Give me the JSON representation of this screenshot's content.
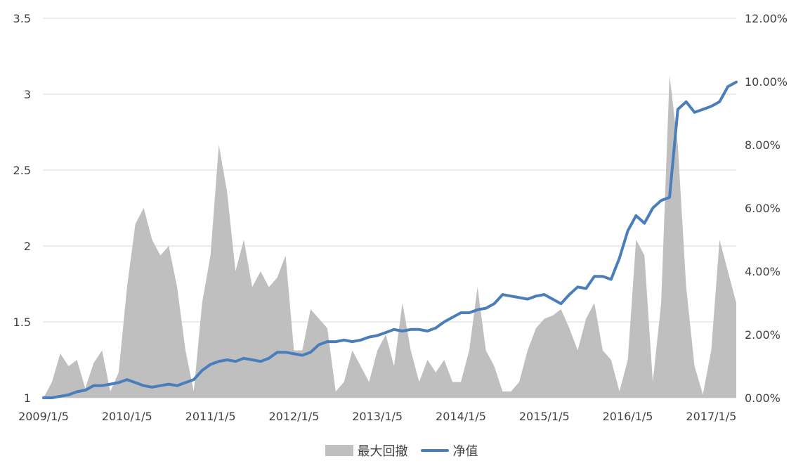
{
  "chart_data": {
    "type": "line",
    "xlabel": "",
    "ylabel": "",
    "x_ticks": [
      "2009/1/5",
      "2010/1/5",
      "2011/1/5",
      "2012/1/5",
      "2013/1/5",
      "2014/1/5",
      "2015/1/5",
      "2016/1/5",
      "2017/1/5"
    ],
    "y_left": {
      "ylim": [
        1,
        3.5
      ],
      "ticks": [
        "1",
        "1.5",
        "2",
        "2.5",
        "3",
        "3.5"
      ]
    },
    "y_right": {
      "ylim": [
        0,
        12
      ],
      "ticks": [
        "0.00%",
        "2.00%",
        "4.00%",
        "6.00%",
        "8.00%",
        "10.00%",
        "12.00%"
      ]
    },
    "grid": true,
    "legend_position": "bottom",
    "colors": {
      "drawdown": "#bfbfbf",
      "nav": "#4a7ebb",
      "grid": "#d9d9d9"
    },
    "series": [
      {
        "name": "最大回撤",
        "type": "area",
        "axis": "right",
        "x": [
          2009.0,
          2009.1,
          2009.2,
          2009.3,
          2009.4,
          2009.5,
          2009.6,
          2009.7,
          2009.8,
          2009.9,
          2010.0,
          2010.1,
          2010.2,
          2010.3,
          2010.4,
          2010.5,
          2010.6,
          2010.7,
          2010.8,
          2010.9,
          2011.0,
          2011.1,
          2011.2,
          2011.3,
          2011.4,
          2011.5,
          2011.6,
          2011.7,
          2011.8,
          2011.9,
          2012.0,
          2012.1,
          2012.2,
          2012.3,
          2012.4,
          2012.5,
          2012.6,
          2012.7,
          2012.8,
          2012.9,
          2013.0,
          2013.1,
          2013.2,
          2013.3,
          2013.4,
          2013.5,
          2013.6,
          2013.7,
          2013.8,
          2013.9,
          2014.0,
          2014.1,
          2014.2,
          2014.3,
          2014.4,
          2014.5,
          2014.6,
          2014.7,
          2014.8,
          2014.9,
          2015.0,
          2015.1,
          2015.2,
          2015.3,
          2015.4,
          2015.5,
          2015.6,
          2015.7,
          2015.8,
          2015.9,
          2016.0,
          2016.1,
          2016.2,
          2016.3,
          2016.4,
          2016.5,
          2016.6,
          2016.7,
          2016.8,
          2016.9,
          2017.0,
          2017.1,
          2017.2,
          2017.3
        ],
        "values": [
          0.0,
          0.5,
          1.4,
          1.0,
          1.2,
          0.3,
          1.1,
          1.5,
          0.2,
          0.8,
          3.5,
          5.5,
          6.0,
          5.0,
          4.5,
          4.8,
          3.5,
          1.5,
          0.2,
          3.0,
          4.5,
          8.0,
          6.5,
          4.0,
          5.0,
          3.5,
          4.0,
          3.5,
          3.8,
          4.5,
          1.5,
          1.5,
          2.8,
          2.5,
          2.2,
          0.2,
          0.5,
          1.5,
          1.0,
          0.5,
          1.5,
          2.0,
          1.0,
          3.0,
          1.5,
          0.5,
          1.2,
          0.8,
          1.2,
          0.5,
          0.5,
          1.5,
          3.5,
          1.5,
          1.0,
          0.2,
          0.2,
          0.5,
          1.5,
          2.2,
          2.5,
          2.6,
          2.8,
          2.2,
          1.5,
          2.5,
          3.0,
          1.5,
          1.2,
          0.2,
          1.2,
          5.0,
          4.5,
          0.5,
          3.0,
          10.2,
          8.0,
          3.5,
          1.0,
          0.1,
          1.5,
          5.0,
          4.0,
          3.0
        ]
      },
      {
        "name": "净值",
        "type": "line",
        "axis": "left",
        "x": [
          2009.0,
          2009.1,
          2009.2,
          2009.3,
          2009.4,
          2009.5,
          2009.6,
          2009.7,
          2009.8,
          2009.9,
          2010.0,
          2010.1,
          2010.2,
          2010.3,
          2010.4,
          2010.5,
          2010.6,
          2010.7,
          2010.8,
          2010.9,
          2011.0,
          2011.1,
          2011.2,
          2011.3,
          2011.4,
          2011.5,
          2011.6,
          2011.7,
          2011.8,
          2011.9,
          2012.0,
          2012.1,
          2012.2,
          2012.3,
          2012.4,
          2012.5,
          2012.6,
          2012.7,
          2012.8,
          2012.9,
          2013.0,
          2013.1,
          2013.2,
          2013.3,
          2013.4,
          2013.5,
          2013.6,
          2013.7,
          2013.8,
          2013.9,
          2014.0,
          2014.1,
          2014.2,
          2014.3,
          2014.4,
          2014.5,
          2014.6,
          2014.7,
          2014.8,
          2014.9,
          2015.0,
          2015.1,
          2015.2,
          2015.3,
          2015.4,
          2015.5,
          2015.6,
          2015.7,
          2015.8,
          2015.9,
          2016.0,
          2016.1,
          2016.2,
          2016.3,
          2016.4,
          2016.5,
          2016.6,
          2016.7,
          2016.8,
          2016.9,
          2017.0,
          2017.1,
          2017.2,
          2017.3
        ],
        "values": [
          1.0,
          1.0,
          1.01,
          1.02,
          1.04,
          1.05,
          1.08,
          1.08,
          1.09,
          1.1,
          1.12,
          1.1,
          1.08,
          1.07,
          1.08,
          1.09,
          1.08,
          1.1,
          1.12,
          1.18,
          1.22,
          1.24,
          1.25,
          1.24,
          1.26,
          1.25,
          1.24,
          1.26,
          1.3,
          1.3,
          1.29,
          1.28,
          1.3,
          1.35,
          1.37,
          1.37,
          1.38,
          1.37,
          1.38,
          1.4,
          1.41,
          1.43,
          1.45,
          1.44,
          1.45,
          1.45,
          1.44,
          1.46,
          1.5,
          1.53,
          1.56,
          1.56,
          1.58,
          1.59,
          1.62,
          1.68,
          1.67,
          1.66,
          1.65,
          1.67,
          1.68,
          1.65,
          1.62,
          1.68,
          1.73,
          1.72,
          1.8,
          1.8,
          1.78,
          1.92,
          2.1,
          2.2,
          2.15,
          2.25,
          2.3,
          2.32,
          2.9,
          2.95,
          2.88,
          2.9,
          2.92,
          2.95,
          3.05,
          3.08
        ]
      }
    ]
  }
}
